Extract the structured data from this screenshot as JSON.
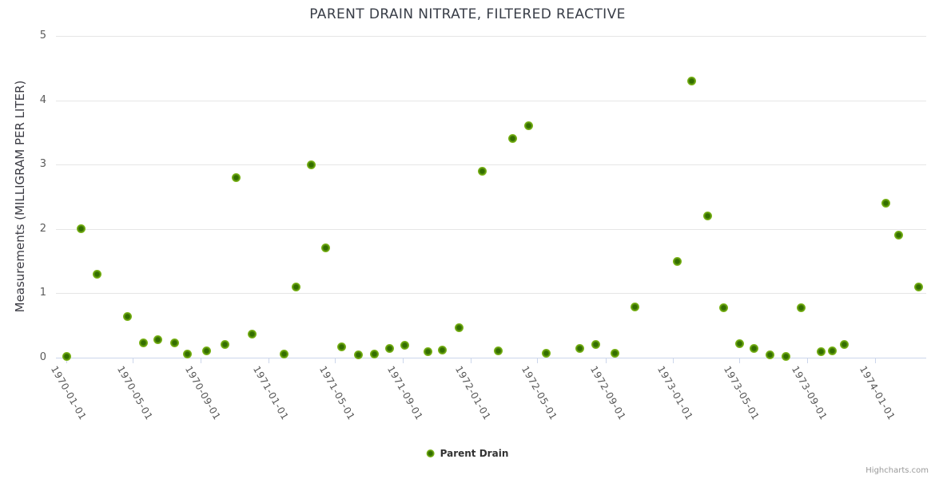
{
  "credits": {
    "label": "Highcharts.com"
  },
  "chart_data": {
    "type": "scatter",
    "title": "PARENT DRAIN NITRATE, FILTERED REACTIVE",
    "xlabel": "",
    "ylabel": "Measurements (MILLIGRAM PER LITER)",
    "ylim": [
      0,
      5
    ],
    "y_ticks": [
      0,
      1,
      2,
      3,
      4,
      5
    ],
    "x_ticks": [
      "1970-01-01",
      "1970-05-01",
      "1970-09-01",
      "1971-01-01",
      "1971-05-01",
      "1971-09-01",
      "1972-01-01",
      "1972-05-01",
      "1972-09-01",
      "1973-01-01",
      "1973-05-01",
      "1973-09-01",
      "1974-01-01"
    ],
    "grid": "horizontal",
    "legend_position": "bottom-center",
    "series": [
      {
        "name": "Parent Drain",
        "color": "#7ab317",
        "marker_core_color": "#336e00",
        "marker_edge_color": "#8ec63c",
        "points": [
          [
            "1970-01-01",
            0.02
          ],
          [
            "1970-01-28",
            2.0
          ],
          [
            "1970-02-25",
            1.3
          ],
          [
            "1970-04-22",
            0.64
          ],
          [
            "1970-05-21",
            0.23
          ],
          [
            "1970-06-16",
            0.28
          ],
          [
            "1970-07-16",
            0.23
          ],
          [
            "1970-08-07",
            0.05
          ],
          [
            "1970-09-11",
            0.1
          ],
          [
            "1970-10-14",
            0.21
          ],
          [
            "1970-11-04",
            2.8
          ],
          [
            "1970-12-02",
            0.36
          ],
          [
            "1971-01-30",
            0.06
          ],
          [
            "1971-02-20",
            1.1
          ],
          [
            "1971-03-19",
            3.0
          ],
          [
            "1971-04-15",
            1.7
          ],
          [
            "1971-05-14",
            0.17
          ],
          [
            "1971-06-12",
            0.04
          ],
          [
            "1971-07-11",
            0.05
          ],
          [
            "1971-08-08",
            0.14
          ],
          [
            "1971-09-04",
            0.19
          ],
          [
            "1971-10-16",
            0.09
          ],
          [
            "1971-11-11",
            0.12
          ],
          [
            "1971-12-11",
            0.46
          ],
          [
            "1972-01-23",
            2.9
          ],
          [
            "1972-02-20",
            0.1
          ],
          [
            "1972-03-18",
            3.4
          ],
          [
            "1972-04-15",
            3.6
          ],
          [
            "1972-05-17",
            0.07
          ],
          [
            "1972-07-16",
            0.14
          ],
          [
            "1972-08-15",
            0.2
          ],
          [
            "1972-09-18",
            0.07
          ],
          [
            "1972-10-24",
            0.79
          ],
          [
            "1973-01-08",
            1.5
          ],
          [
            "1973-02-04",
            4.3
          ],
          [
            "1973-03-05",
            2.2
          ],
          [
            "1973-04-02",
            0.77
          ],
          [
            "1973-05-01",
            0.22
          ],
          [
            "1973-05-28",
            0.14
          ],
          [
            "1973-06-25",
            0.04
          ],
          [
            "1973-07-24",
            0.02
          ],
          [
            "1973-08-21",
            0.78
          ],
          [
            "1973-09-25",
            0.09
          ],
          [
            "1973-10-16",
            0.1
          ],
          [
            "1973-11-06",
            0.2
          ],
          [
            "1974-01-21",
            2.4
          ],
          [
            "1974-02-13",
            1.9
          ],
          [
            "1974-03-20",
            1.1
          ]
        ]
      }
    ]
  }
}
